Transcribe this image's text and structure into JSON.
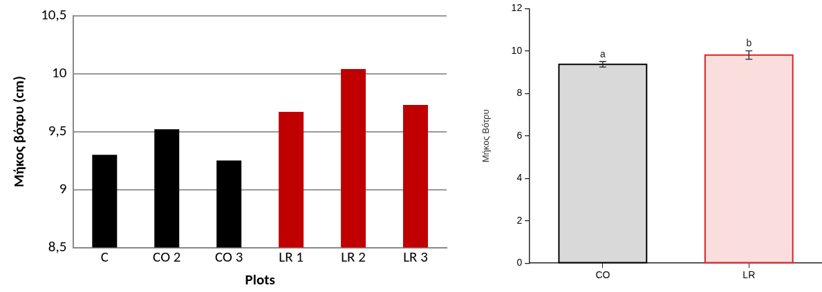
{
  "chart_data": [
    {
      "type": "bar",
      "xlabel": "Plots",
      "ylabel": "Μήκος βότρυ (cm)",
      "categories": [
        "C",
        "CO 2",
        "CO 3",
        "LR 1",
        "LR 2",
        "LR 3"
      ],
      "values": [
        9.3,
        9.52,
        9.25,
        9.67,
        10.04,
        9.73
      ],
      "colors": [
        "#000000",
        "#000000",
        "#000000",
        "#c00000",
        "#c00000",
        "#c00000"
      ],
      "ylim": [
        8.5,
        10.5
      ],
      "yticks": [
        {
          "value": 8.5,
          "label": "8,5"
        },
        9,
        {
          "value": 9.5,
          "label": "9,5"
        },
        10,
        {
          "value": 10.5,
          "label": "10,5"
        }
      ],
      "grid": "y"
    },
    {
      "type": "bar",
      "ylabel": "Μήκος Βότρυ",
      "categories": [
        "CO",
        "LR"
      ],
      "values": [
        9.37,
        9.81
      ],
      "errors": [
        0.13,
        0.2
      ],
      "colors": [
        "#000000",
        "#e02020"
      ],
      "ylim": [
        0,
        12
      ],
      "yticks": [
        0,
        2,
        4,
        6,
        8,
        10,
        12
      ],
      "grid": false,
      "annotations": [
        {
          "text": "a",
          "x": "CO",
          "y": 9.37
        },
        {
          "text": "b",
          "x": "LR",
          "y": 9.81
        }
      ]
    }
  ]
}
